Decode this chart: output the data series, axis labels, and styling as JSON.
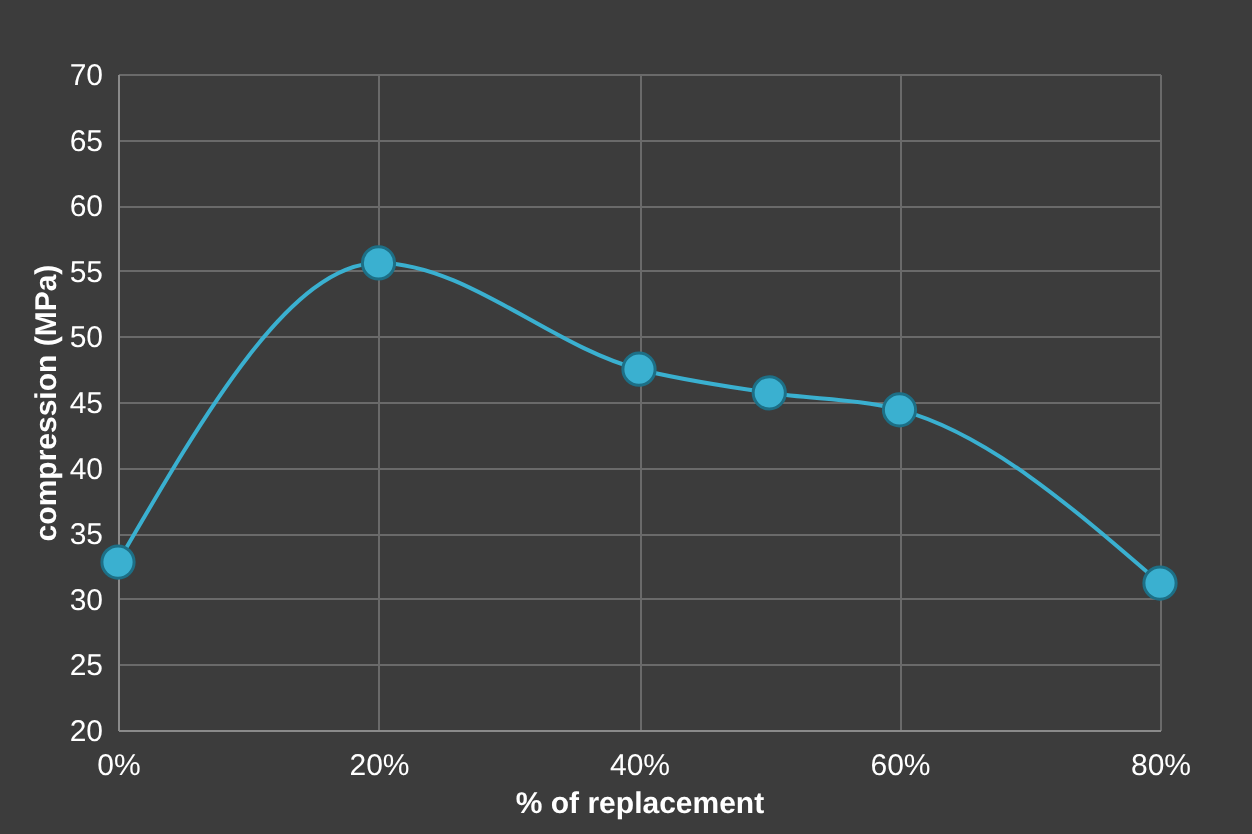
{
  "chart_data": {
    "type": "line",
    "xlabel": "% of replacement",
    "ylabel": "compression (MPa)",
    "x": [
      0,
      20,
      40,
      50,
      60,
      80
    ],
    "series": [
      {
        "color": "#3ab0d0",
        "values": [
          32.8,
          55.6,
          47.5,
          45.7,
          44.4,
          31.2
        ]
      }
    ],
    "xlim": [
      0,
      80
    ],
    "xticks": [
      {
        "value": 0,
        "label": "0%"
      },
      {
        "value": 20,
        "label": "20%"
      },
      {
        "value": 40,
        "label": "40%"
      },
      {
        "value": 60,
        "label": "60%"
      },
      {
        "value": 80,
        "label": "80%"
      }
    ],
    "ylim": [
      20,
      70
    ],
    "yticks": [
      20,
      25,
      30,
      35,
      40,
      45,
      50,
      55,
      60,
      65,
      70
    ],
    "grid": true,
    "marker": "circle",
    "line_style": "solid"
  }
}
